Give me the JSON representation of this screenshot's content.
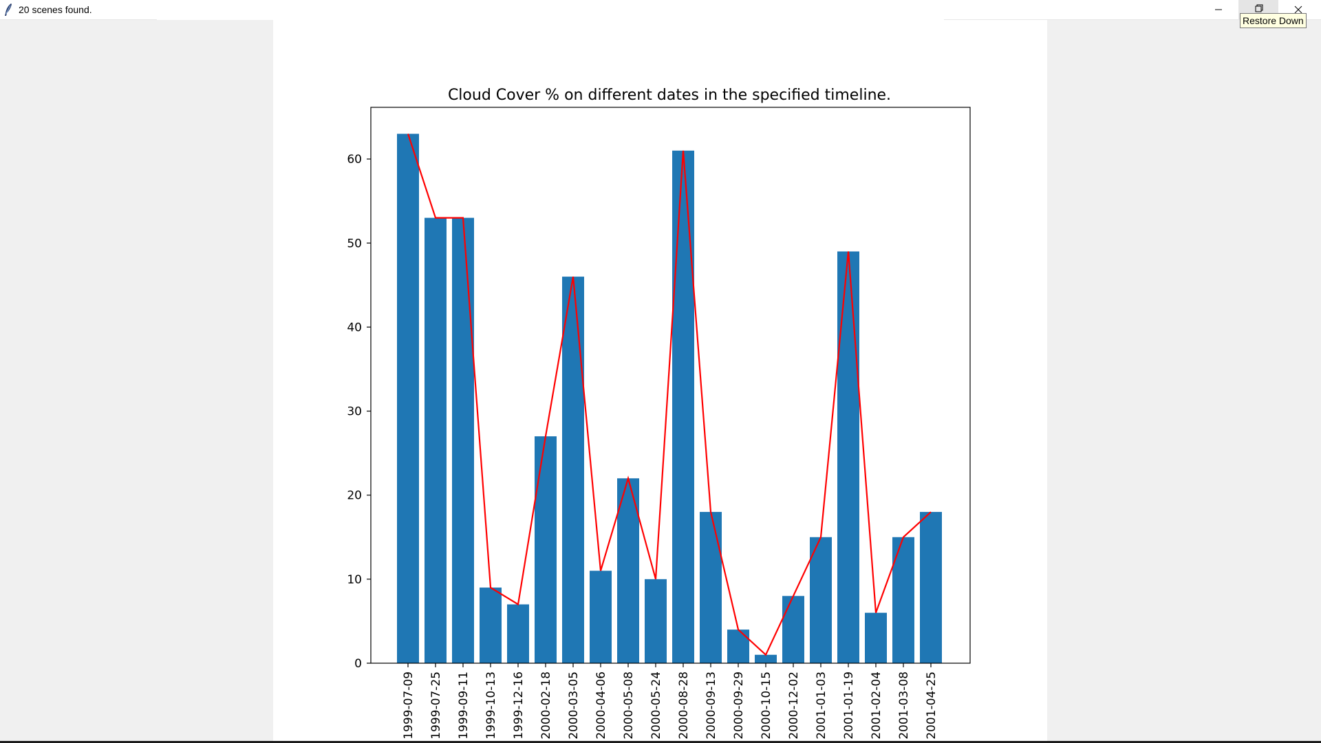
{
  "window": {
    "title": "20 scenes found.",
    "app_icon": "feather-icon",
    "controls": {
      "minimize_icon": "minimize-icon",
      "restore_icon": "restore-icon",
      "close_icon": "close-icon"
    },
    "tooltip": "Restore Down"
  },
  "colors": {
    "bar": "#1f77b4",
    "line": "#ff0000",
    "axes": "#000000",
    "canvas": "#ffffff",
    "window_bg": "#f0f0f0"
  },
  "chart_data": {
    "type": "bar",
    "title": "Cloud Cover % on different dates in the specified timeline.",
    "xlabel": "",
    "ylabel": "",
    "categories": [
      "1999-07-09",
      "1999-07-25",
      "1999-09-11",
      "1999-10-13",
      "1999-12-16",
      "2000-02-18",
      "2000-03-05",
      "2000-04-06",
      "2000-05-08",
      "2000-05-24",
      "2000-08-28",
      "2000-09-13",
      "2000-09-29",
      "2000-10-15",
      "2000-12-02",
      "2001-01-03",
      "2001-01-19",
      "2001-02-04",
      "2001-03-08",
      "2001-04-25"
    ],
    "values": [
      63,
      53,
      53,
      9,
      7,
      27,
      46,
      11,
      22,
      10,
      61,
      18,
      4,
      1,
      8,
      15,
      49,
      6,
      15,
      18
    ],
    "overlay_line": true,
    "yticks": [
      0,
      10,
      20,
      30,
      40,
      50,
      60
    ],
    "ylim": [
      0,
      66.15
    ],
    "xtick_rotation": "vertical",
    "grid": false,
    "legend": "none"
  }
}
